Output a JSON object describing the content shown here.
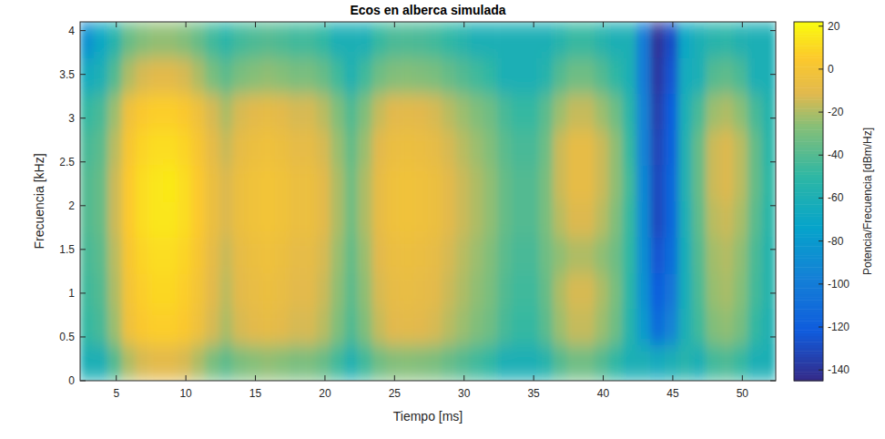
{
  "chart_data": {
    "type": "heatmap",
    "title": "Ecos en alberca simulada",
    "x_label": "Tiempo [ms]",
    "y_label": "Frecuencia [kHz]",
    "x": [
      2.9,
      3.9,
      4.9,
      5.9,
      6.9,
      7.9,
      8.9,
      9.9,
      10.9,
      11.9,
      12.9,
      13.9,
      14.9,
      15.9,
      16.9,
      17.9,
      18.9,
      19.9,
      20.9,
      21.9,
      22.9,
      23.9,
      24.9,
      25.9,
      26.9,
      27.9,
      28.9,
      29.9,
      30.9,
      31.9,
      32.9,
      33.9,
      34.9,
      35.9,
      36.9,
      37.9,
      38.9,
      39.9,
      40.9,
      41.9,
      42.9,
      43.9,
      44.9,
      45.9,
      46.9,
      47.9,
      48.9,
      49.9,
      50.9,
      51.9
    ],
    "y": [
      0.205,
      0.615,
      1.025,
      1.435,
      1.845,
      2.255,
      2.665,
      3.075,
      3.485,
      3.895
    ],
    "cells": [
      [
        -60,
        -48,
        -45,
        -43,
        -40,
        -40,
        -43,
        -48,
        -65,
        -85
      ],
      [
        -60,
        -43,
        -40,
        -38,
        -35,
        -35,
        -38,
        -43,
        -60,
        -70
      ],
      [
        -40,
        -23,
        -20,
        -18,
        -15,
        -15,
        -18,
        -23,
        -40,
        -55
      ],
      [
        -20,
        -3,
        0,
        2,
        5,
        5,
        2,
        -3,
        -20,
        -35
      ],
      [
        -13,
        4,
        7,
        9,
        12,
        12,
        9,
        4,
        -13,
        -28
      ],
      [
        -10,
        7,
        10,
        12,
        15,
        15,
        12,
        7,
        -10,
        -25
      ],
      [
        -10,
        7,
        10,
        12,
        15,
        16,
        12,
        7,
        -10,
        -25
      ],
      [
        -13,
        4,
        7,
        9,
        12,
        12,
        9,
        4,
        -13,
        -28
      ],
      [
        -20,
        -3,
        0,
        2,
        5,
        5,
        2,
        -3,
        -20,
        -35
      ],
      [
        -30,
        -13,
        -10,
        -8,
        -5,
        -5,
        -8,
        -13,
        -30,
        -45
      ],
      [
        -37,
        -20,
        -17,
        -15,
        -12,
        -12,
        -15,
        -20,
        -37,
        -52
      ],
      [
        -30,
        -13,
        -10,
        -8,
        -5,
        -5,
        -8,
        -13,
        -30,
        -45
      ],
      [
        -27,
        -10,
        -7,
        -5,
        -2,
        -2,
        -5,
        -10,
        -27,
        -42
      ],
      [
        -25,
        -8,
        -5,
        -3,
        0,
        0,
        -3,
        -8,
        -25,
        -40
      ],
      [
        -27,
        -10,
        -7,
        -5,
        -2,
        -2,
        -5,
        -10,
        -27,
        -42
      ],
      [
        -30,
        -13,
        -10,
        -8,
        -5,
        -5,
        -8,
        -13,
        -30,
        -45
      ],
      [
        -30,
        -13,
        -10,
        -8,
        -5,
        -5,
        -8,
        -13,
        -30,
        -45
      ],
      [
        -35,
        -18,
        -15,
        -13,
        -10,
        -10,
        -13,
        -18,
        -35,
        -50
      ],
      [
        -45,
        -28,
        -25,
        -23,
        -20,
        -20,
        -23,
        -28,
        -45,
        -60
      ],
      [
        -57,
        -40,
        -37,
        -35,
        -32,
        -32,
        -35,
        -40,
        -57,
        -60
      ],
      [
        -45,
        -28,
        -25,
        -23,
        -20,
        -20,
        -23,
        -28,
        -45,
        -60
      ],
      [
        -33,
        -16,
        -13,
        -11,
        -8,
        -8,
        -11,
        -16,
        -33,
        -48
      ],
      [
        -28,
        -11,
        -8,
        -6,
        -3,
        -3,
        -6,
        -11,
        -28,
        -43
      ],
      [
        -27,
        -10,
        -7,
        -5,
        -2,
        -2,
        -5,
        -10,
        -27,
        -42
      ],
      [
        -28,
        -11,
        -8,
        -6,
        -3,
        -3,
        -6,
        -11,
        -28,
        -43
      ],
      [
        -30,
        -13,
        -10,
        -8,
        -5,
        -5,
        -8,
        -13,
        -30,
        -45
      ],
      [
        -35,
        -18,
        -15,
        -13,
        -10,
        -10,
        -13,
        -18,
        -35,
        -50
      ],
      [
        -40,
        -23,
        -20,
        -18,
        -15,
        -15,
        -18,
        -23,
        -40,
        -55
      ],
      [
        -45,
        -28,
        -25,
        -23,
        -20,
        -20,
        -23,
        -28,
        -45,
        -60
      ],
      [
        -50,
        -33,
        -30,
        -28,
        -25,
        -25,
        -28,
        -33,
        -50,
        -60
      ],
      [
        -60,
        -43,
        -40,
        -38,
        -35,
        -35,
        -38,
        -43,
        -60,
        -60
      ],
      [
        -60,
        -48,
        -45,
        -43,
        -40,
        -40,
        -43,
        -48,
        -60,
        -60
      ],
      [
        -60,
        -48,
        -45,
        -43,
        -40,
        -40,
        -43,
        -48,
        -60,
        -60
      ],
      [
        -55,
        -38,
        -35,
        -33,
        -30,
        -30,
        -33,
        -38,
        -55,
        -60
      ],
      [
        -40,
        -23,
        -20,
        -25,
        -18,
        -15,
        -15,
        -23,
        -40,
        -55
      ],
      [
        -33,
        -16,
        -13,
        -20,
        -12,
        -8,
        -8,
        -16,
        -33,
        -48
      ],
      [
        -33,
        -16,
        -13,
        -20,
        -12,
        -8,
        -8,
        -16,
        -33,
        -48
      ],
      [
        -40,
        -23,
        -20,
        -25,
        -18,
        -15,
        -15,
        -23,
        -40,
        -55
      ],
      [
        -50,
        -33,
        -30,
        -33,
        -28,
        -25,
        -25,
        -33,
        -50,
        -60
      ],
      [
        -60,
        -55,
        -52,
        -50,
        -48,
        -45,
        -48,
        -53,
        -60,
        -60
      ],
      [
        -60,
        -80,
        -85,
        -88,
        -90,
        -92,
        -95,
        -95,
        -100,
        -100
      ],
      [
        -65,
        -110,
        -120,
        -125,
        -130,
        -130,
        -132,
        -135,
        -138,
        -140
      ],
      [
        -60,
        -95,
        -105,
        -110,
        -115,
        -115,
        -118,
        -120,
        -125,
        -128
      ],
      [
        -55,
        -60,
        -62,
        -62,
        -60,
        -58,
        -58,
        -60,
        -65,
        -70
      ],
      [
        -60,
        -45,
        -42,
        -40,
        -37,
        -35,
        -35,
        -43,
        -60,
        -60
      ],
      [
        -45,
        -28,
        -24,
        -22,
        -18,
        -15,
        -15,
        -23,
        -40,
        -55
      ],
      [
        -42,
        -25,
        -21,
        -19,
        -15,
        -12,
        -12,
        -20,
        -37,
        -52
      ],
      [
        -48,
        -31,
        -27,
        -25,
        -21,
        -18,
        -18,
        -26,
        -43,
        -58
      ],
      [
        -60,
        -48,
        -44,
        -42,
        -38,
        -35,
        -35,
        -43,
        -60,
        -60
      ],
      [
        -60,
        -58,
        -55,
        -55,
        -52,
        -50,
        -52,
        -55,
        -60,
        -60
      ]
    ],
    "xlim": [
      2.4,
      52.4
    ],
    "ylim": [
      0,
      4.1
    ],
    "xticks": [
      5,
      10,
      15,
      20,
      25,
      30,
      35,
      40,
      45,
      50
    ],
    "yticks": [
      0,
      0.5,
      1,
      1.5,
      2,
      2.5,
      3,
      3.5,
      4
    ],
    "colorbar": {
      "label": "Potencia/Frecuencia [dBm/Hz]",
      "range": [
        -145,
        22
      ],
      "ticks": [
        -140,
        -120,
        -100,
        -80,
        -60,
        -40,
        -20,
        0,
        20
      ]
    }
  }
}
